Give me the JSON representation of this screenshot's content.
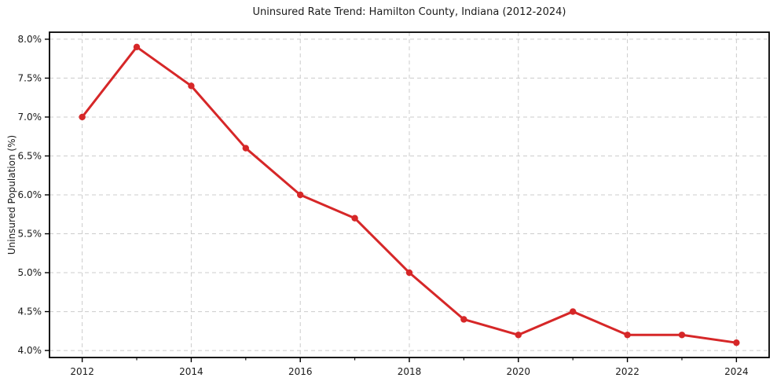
{
  "figure": {
    "background": "#ffffff"
  },
  "chart_data": {
    "type": "line",
    "title": "Uninsured Rate Trend: Hamilton County, Indiana (2012-2024)",
    "xlabel": "",
    "ylabel": "Uninsured Population (%)",
    "x": [
      2012,
      2013,
      2014,
      2015,
      2016,
      2017,
      2018,
      2019,
      2020,
      2021,
      2022,
      2023,
      2024
    ],
    "values": [
      7.0,
      7.9,
      7.4,
      6.6,
      6.0,
      5.7,
      5.0,
      4.4,
      4.2,
      4.5,
      4.2,
      4.2,
      4.1
    ],
    "xlim": [
      2011.4,
      2024.6
    ],
    "ylim": [
      3.91,
      8.09
    ],
    "xticks": [
      2012,
      2014,
      2016,
      2018,
      2020,
      2022,
      2024
    ],
    "xtick_labels": [
      "2012",
      "2014",
      "2016",
      "2018",
      "2020",
      "2022",
      "2024"
    ],
    "xminorticks": [
      2013,
      2015,
      2017,
      2019,
      2021,
      2023
    ],
    "yticks": [
      4.0,
      4.5,
      5.0,
      5.5,
      6.0,
      6.5,
      7.0,
      7.5,
      8.0
    ],
    "ytick_labels": [
      "4.0%",
      "4.5%",
      "5.0%",
      "5.5%",
      "6.0%",
      "6.5%",
      "7.0%",
      "7.5%",
      "8.0%"
    ],
    "grid": true,
    "grid_style": "dashed",
    "legend": false,
    "line_color": "#d62728",
    "marker": "o",
    "grid_color": "#cccccc",
    "spine_color": "#000000",
    "text_color": "#1a1a1a"
  }
}
